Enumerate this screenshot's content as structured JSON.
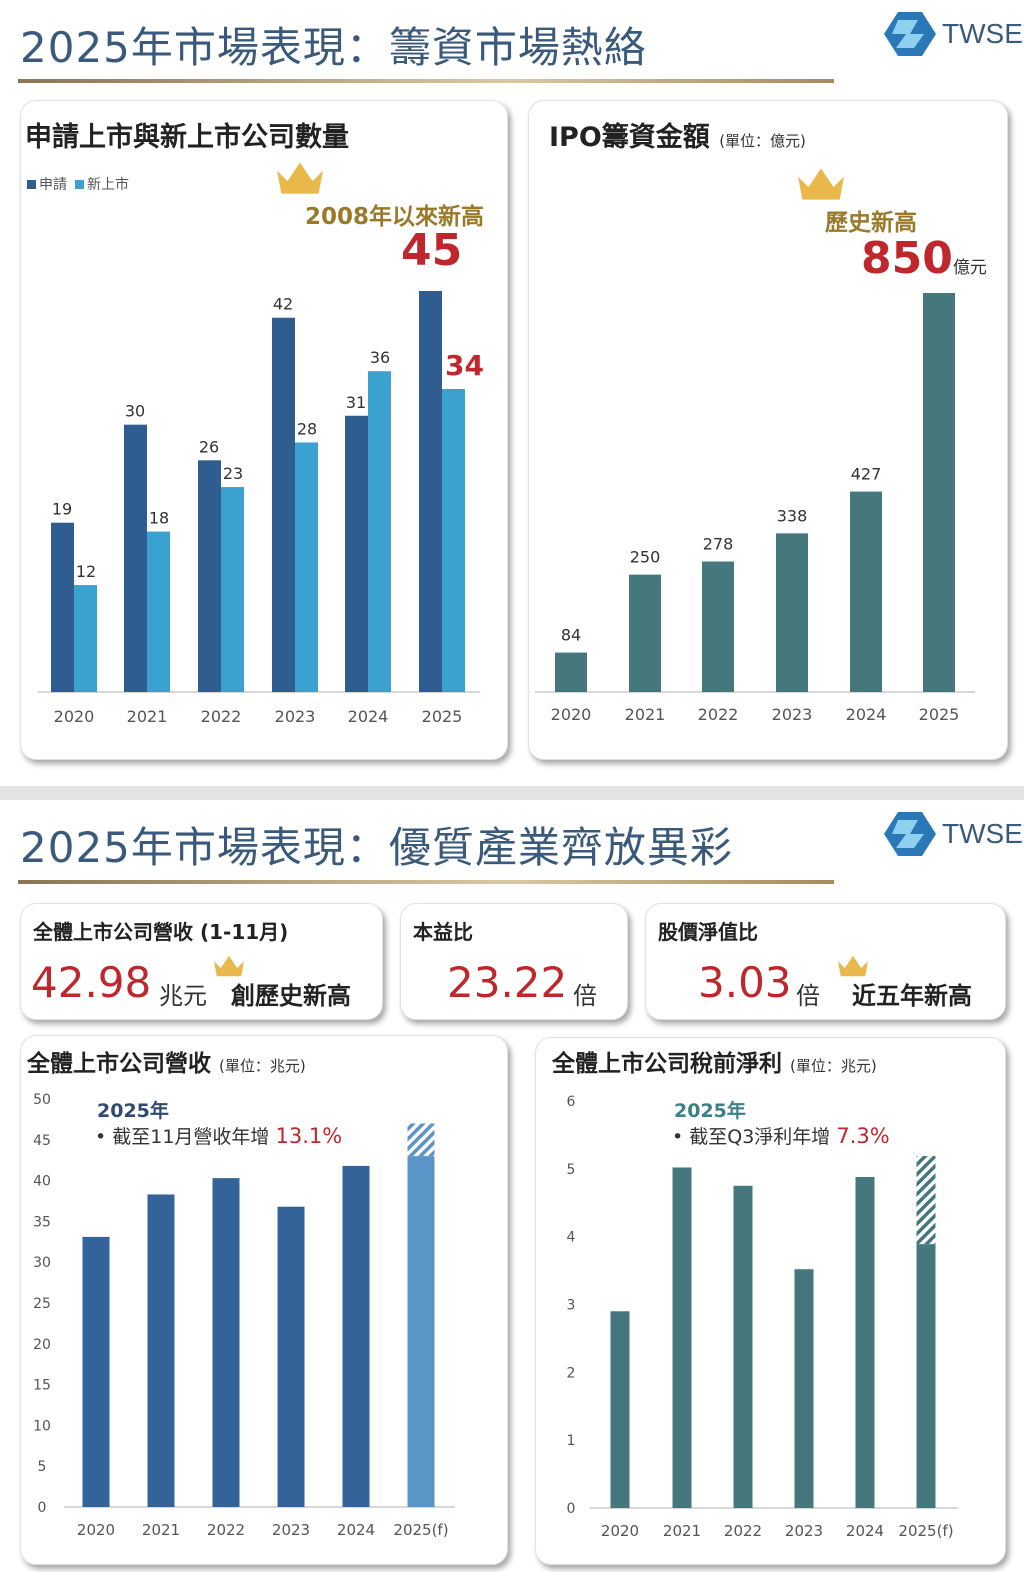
{
  "section1": {
    "title": "2025年市場表現：籌資市場熱絡",
    "logo_text": "TWSE"
  },
  "section2": {
    "title": "2025年市場表現：優質產業齊放異彩",
    "logo_text": "TWSE"
  },
  "colors": {
    "title": "#3a5a7c",
    "apply": "#2f5d8f",
    "listed": "#3aa1d0",
    "ipo": "#44787c",
    "revenue": "#34639a",
    "revenue_2025": "#5b95c7",
    "profit": "#44787c",
    "highlight": "#c0272d",
    "gold": "#e8b84a"
  },
  "kpis": [
    {
      "label": "全體上市公司營收 (1-11月)",
      "value": "42.98",
      "unit": "兆元",
      "note": "創歷史新高"
    },
    {
      "label": "本益比",
      "value": "23.22",
      "unit": "倍"
    },
    {
      "label": "股價淨值比",
      "value": "3.03",
      "unit": "倍",
      "note": "近五年新高"
    }
  ],
  "chart_data": [
    {
      "type": "bar",
      "title": "申請上市與新上市公司數量",
      "categories": [
        "2020",
        "2021",
        "2022",
        "2023",
        "2024",
        "2025"
      ],
      "series": [
        {
          "name": "申請",
          "values": [
            19,
            30,
            26,
            42,
            31,
            45
          ]
        },
        {
          "name": "新上市",
          "values": [
            12,
            18,
            23,
            28,
            36,
            34
          ]
        }
      ],
      "annotation": "2008年以來新高",
      "highlight_apply": "45",
      "highlight_listed": "34",
      "ylim": [
        0,
        45
      ],
      "legend": "top-left"
    },
    {
      "type": "bar",
      "title": "IPO籌資金額",
      "unit": "(單位：億元)",
      "categories": [
        "2020",
        "2021",
        "2022",
        "2023",
        "2024",
        "2025"
      ],
      "values": [
        84,
        250,
        278,
        338,
        427,
        850
      ],
      "annotation": "歷史新高",
      "highlight": "850",
      "highlight_unit": "億元",
      "ylim": [
        0,
        850
      ]
    },
    {
      "type": "bar",
      "title": "全體上市公司營收",
      "unit": "(單位：兆元)",
      "categories": [
        "2020",
        "2021",
        "2022",
        "2023",
        "2024",
        "2025(f)"
      ],
      "values": [
        33.1,
        38.3,
        40.3,
        36.8,
        41.8,
        43.0
      ],
      "forecast_top": 47.0,
      "yticks": [
        "0",
        "5",
        "10",
        "15",
        "20",
        "25",
        "30",
        "35",
        "40",
        "45",
        "50"
      ],
      "ylim": [
        0,
        50
      ],
      "note_year": "2025年",
      "note_text": "• 截至11月營收年增",
      "note_value": "13.1%"
    },
    {
      "type": "bar",
      "title": "全體上市公司稅前淨利",
      "unit": "(單位：兆元)",
      "categories": [
        "2020",
        "2021",
        "2022",
        "2023",
        "2024",
        "2025(f)"
      ],
      "values": [
        2.9,
        5.02,
        4.75,
        3.52,
        4.88,
        3.89
      ],
      "forecast_top": 5.19,
      "yticks": [
        "0",
        "1",
        "2",
        "3",
        "4",
        "5",
        "6"
      ],
      "ylim": [
        0,
        6
      ],
      "note_year": "2025年",
      "note_text": "• 截至Q3淨利年增",
      "note_value": "7.3%"
    }
  ]
}
